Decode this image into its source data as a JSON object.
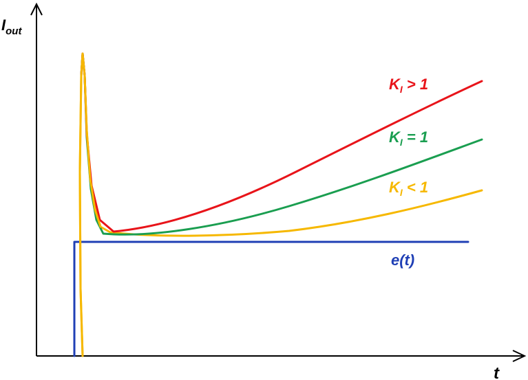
{
  "chart_data": {
    "type": "line",
    "title": "",
    "ylabel": {
      "main": "I",
      "sub": "out"
    },
    "xlabel": "t",
    "grid": false,
    "legend": "inline labels at right end of each curve",
    "series": [
      {
        "name": "K_I > 1",
        "label_main": "K",
        "label_sub": "I",
        "label_rest": " > 1",
        "color": "#e8141a"
      },
      {
        "name": "K_I = 1",
        "label_main": "K",
        "label_sub": "I",
        "label_rest": " = 1",
        "color": "#1a9e50"
      },
      {
        "name": "K_I < 1",
        "label_main": "K",
        "label_sub": "I",
        "label_rest": " < 1",
        "color": "#f6b800"
      },
      {
        "name": "e(t)",
        "label_main": "e(t)",
        "color": "#1f3fb5"
      }
    ]
  }
}
